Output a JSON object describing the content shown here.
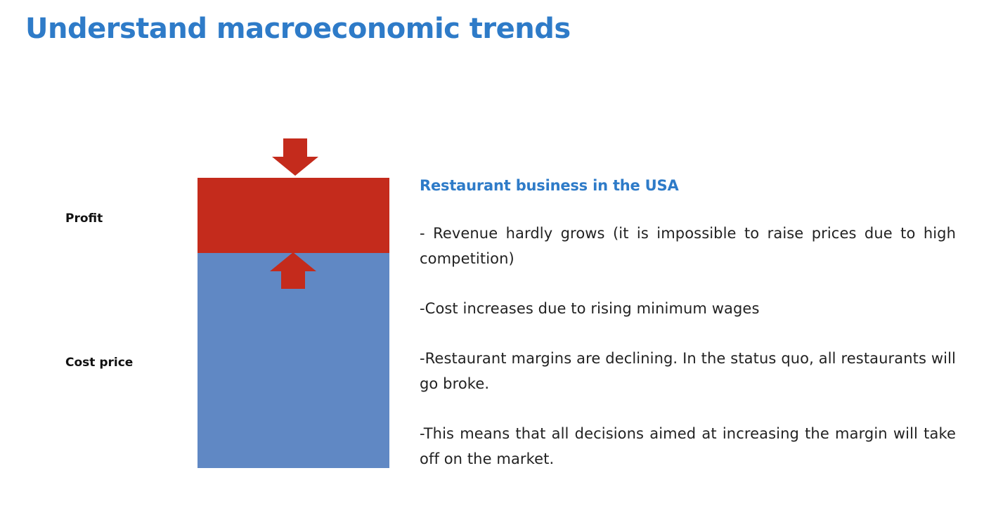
{
  "slide": {
    "title": "Understand macroeconomic trends"
  },
  "diagram": {
    "labels": {
      "profit": "Profit",
      "cost_price": "Cost price"
    },
    "colors": {
      "profit_block": "#c42b1c",
      "cost_block": "#6088c4",
      "arrows": "#c42b1c"
    }
  },
  "content": {
    "heading": "Restaurant business in the USA",
    "bullets": [
      "- Revenue hardly grows (it is impossible to raise prices due to high competition)",
      "-Cost increases due to rising minimum wages",
      "-Restaurant margins are declining. In the status quo, all restaurants will go broke.",
      "-This means that all decisions aimed at increasing the margin will take off on the market."
    ]
  },
  "colors": {
    "title": "#2e7bc8",
    "heading": "#2e7bc8"
  }
}
